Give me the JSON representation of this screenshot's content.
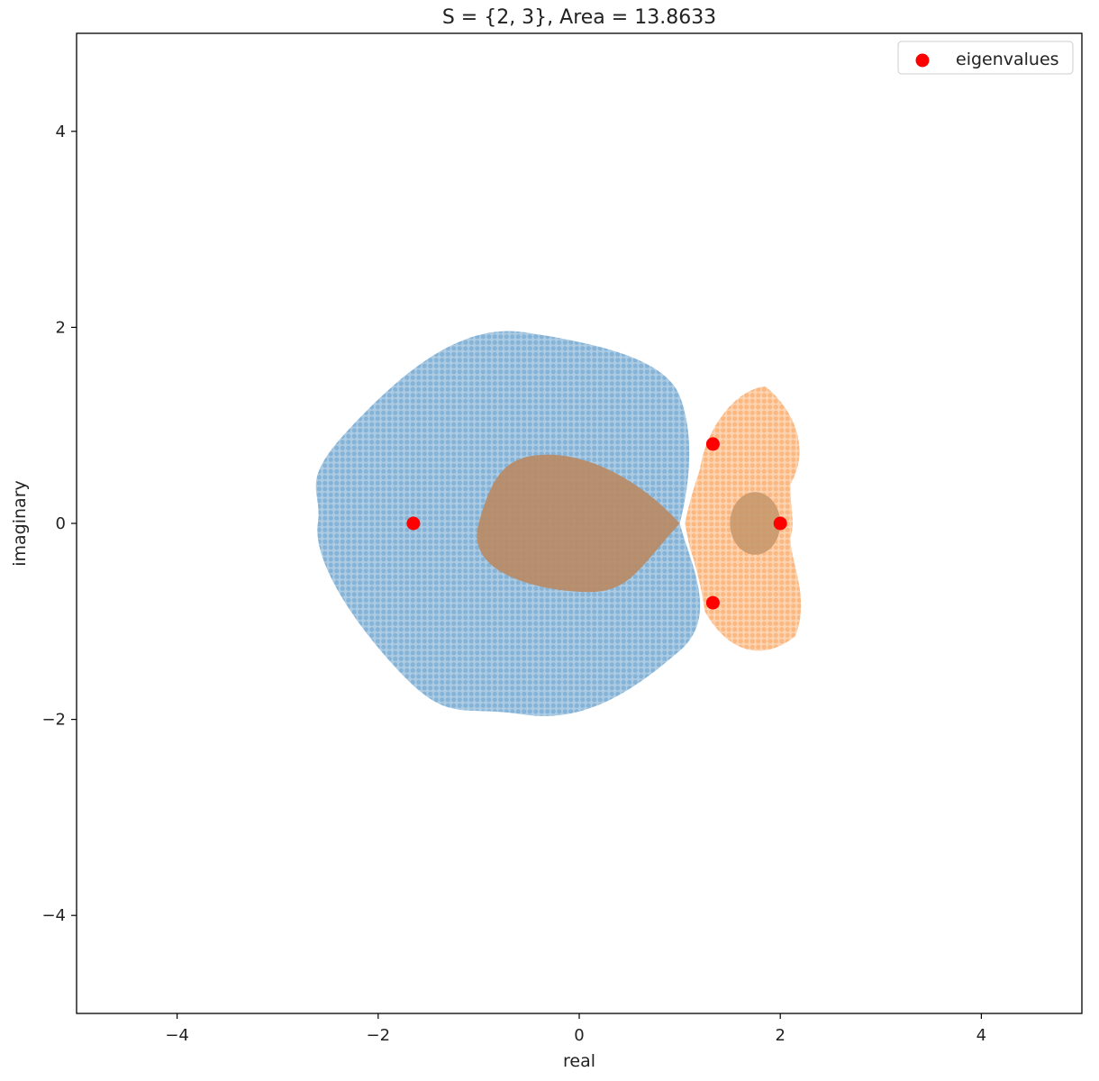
{
  "chart_data": {
    "type": "scatter",
    "title": "S = {2, 3}, Area = 13.8633",
    "xlabel": "real",
    "ylabel": "imaginary",
    "xlim": [
      -5,
      5
    ],
    "ylim": [
      -5,
      5
    ],
    "xticks": [
      -4,
      -2,
      0,
      2,
      4
    ],
    "yticks": [
      -4,
      -2,
      0,
      2,
      4
    ],
    "xtick_labels": [
      "−4",
      "−2",
      "0",
      "2",
      "4"
    ],
    "ytick_labels": [
      "−4",
      "−2",
      "0",
      "2",
      "4"
    ],
    "grid": false,
    "legend": {
      "placement": "top-right",
      "entries": [
        "eigenvalues"
      ]
    },
    "colors": {
      "region_blue": "#1f77b4",
      "region_orange": "#ff7f0e",
      "eigenvalue": "#ff0000"
    },
    "regions": [
      {
        "color": "blue",
        "center": [
          -0.55,
          0.0
        ],
        "radius_x": 2.05,
        "radius_y": 1.95
      },
      {
        "color": "orange",
        "center": [
          1.75,
          0.0
        ],
        "extent_x": [
          1.05,
          2.3
        ],
        "extent_y": [
          -1.4,
          1.4
        ]
      }
    ],
    "eigenvalues": {
      "name": "eigenvalues",
      "x": [
        -1.65,
        1.33,
        1.33,
        2.0
      ],
      "y": [
        0.0,
        0.81,
        -0.81,
        0.0
      ]
    }
  }
}
